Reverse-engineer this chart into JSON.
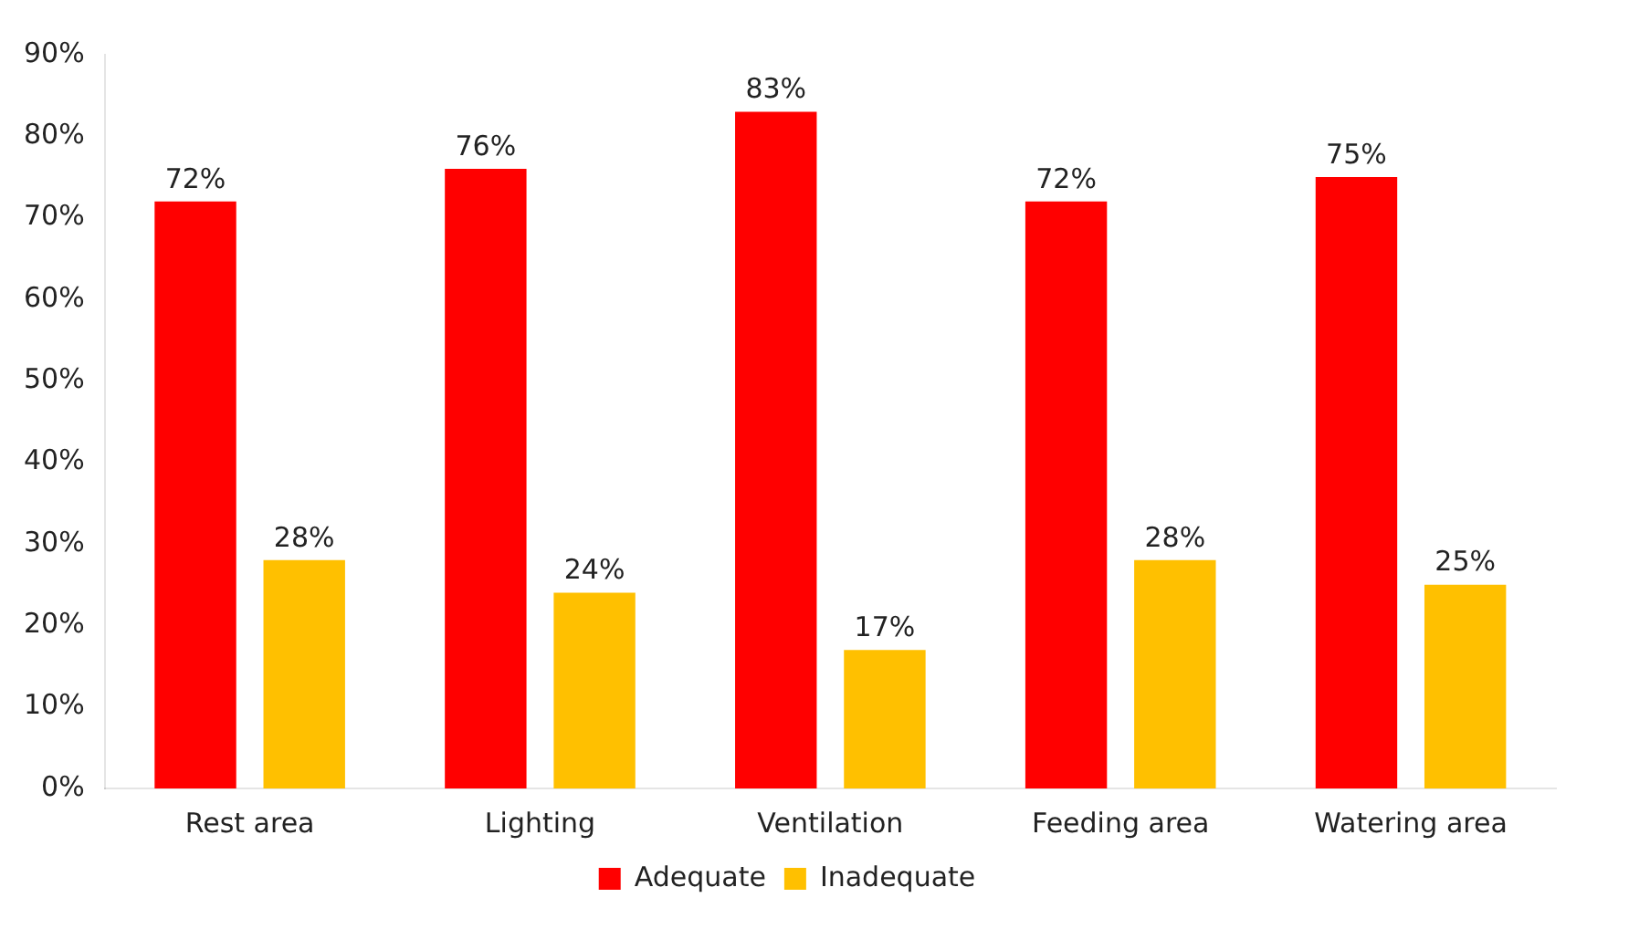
{
  "chart_data": {
    "type": "bar",
    "categories": [
      "Rest area",
      "Lighting",
      "Ventilation",
      "Feeding area",
      "Watering area"
    ],
    "series": [
      {
        "name": "Adequate",
        "color": "#ff0000",
        "values": [
          72,
          76,
          83,
          72,
          75
        ],
        "value_labels": [
          "72%",
          "76%",
          "83%",
          "72%",
          "75%"
        ]
      },
      {
        "name": "Inadequate",
        "color": "#ffc000",
        "values": [
          28,
          24,
          17,
          28,
          25
        ],
        "value_labels": [
          "28%",
          "24%",
          "17%",
          "28%",
          "25%"
        ]
      }
    ],
    "ylim": [
      0,
      90
    ],
    "yticks": [
      {
        "value": 0,
        "label": "0%"
      },
      {
        "value": 10,
        "label": "10%"
      },
      {
        "value": 20,
        "label": "20%"
      },
      {
        "value": 30,
        "label": "30%"
      },
      {
        "value": 40,
        "label": "40%"
      },
      {
        "value": 50,
        "label": "50%"
      },
      {
        "value": 60,
        "label": "60%"
      },
      {
        "value": 70,
        "label": "70%"
      },
      {
        "value": 80,
        "label": "80%"
      },
      {
        "value": 90,
        "label": "90%"
      }
    ],
    "grid": false,
    "legend": "bottom"
  }
}
